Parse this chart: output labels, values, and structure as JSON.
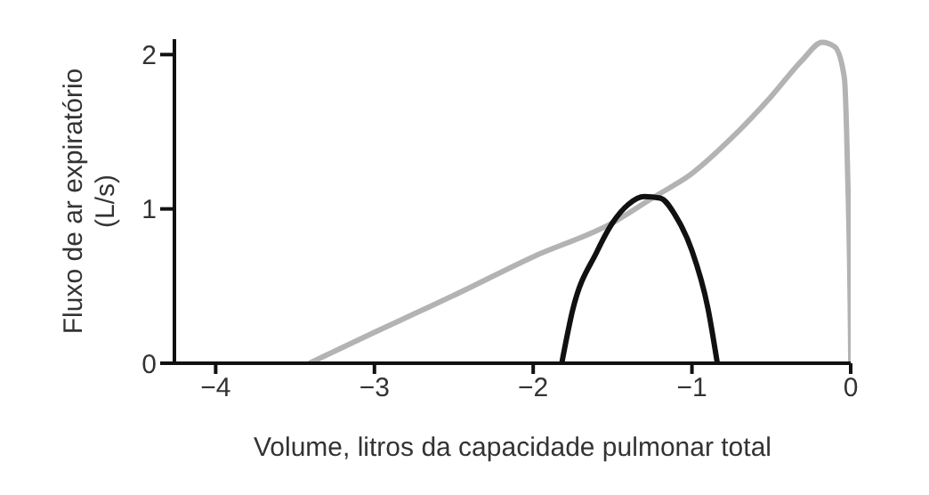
{
  "chart_data": {
    "type": "line",
    "xlabel": "Volume, litros da capacidade pulmonar total",
    "ylabel": "Fluxo de ar expiratório (L/s)",
    "xlim": [
      -4.26,
      0
    ],
    "xticks": [
      {
        "value": -4,
        "label": "−4"
      },
      {
        "value": -3,
        "label": "−3"
      },
      {
        "value": -2,
        "label": "−2"
      },
      {
        "value": -1,
        "label": "−1"
      },
      0
    ],
    "ylim": [
      0,
      2.1
    ],
    "yticks": [
      0,
      1,
      2
    ],
    "grid": false,
    "legend": false,
    "marker": "none",
    "line_style": "solid",
    "series": [
      {
        "color": "#b3b3b3",
        "x": [
          -3.41,
          -3,
          -2.75,
          -2.5,
          -2,
          -1.5,
          -1.25,
          -1,
          -0.75,
          -0.5,
          -0.3,
          -0.18,
          -0.1,
          -0.04,
          -0.02,
          0,
          0
        ],
        "values": [
          0,
          0.2,
          0.32,
          0.44,
          0.69,
          0.91,
          1.07,
          1.23,
          1.46,
          1.73,
          1.97,
          2.08,
          2.05,
          1.85,
          1.26,
          0.05,
          0
        ]
      },
      {
        "color": "#111111",
        "x": [
          -1.82,
          -1.75,
          -1.6,
          -1.5,
          -1.4,
          -1.3,
          -1.2,
          -1.1,
          -1,
          -0.9,
          -0.84
        ],
        "values": [
          0,
          0.35,
          0.72,
          0.91,
          1.03,
          1.08,
          1.07,
          0.95,
          0.73,
          0.36,
          0
        ]
      }
    ]
  }
}
